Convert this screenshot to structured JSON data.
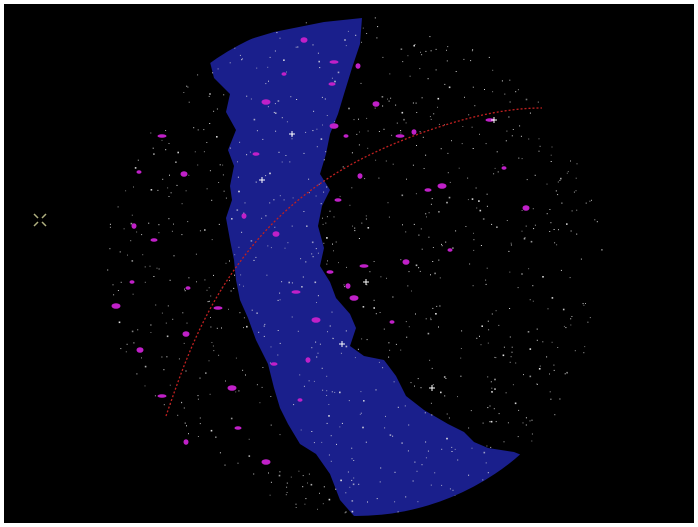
{
  "view": {
    "type": "planetarium-all-sky-view",
    "background_color": "#000000",
    "horizon_fill_color": "#000000",
    "milky_way_color": "#1a1f8c",
    "milky_way_highlight_color": "#2a32b0",
    "star_color": "#e8e8e8",
    "deep_sky_object_color": "#c020c8",
    "ecliptic_color": "#c02020",
    "cursor_color": "#b0b080"
  },
  "icons": {
    "cursor": "crosshair-icon"
  }
}
